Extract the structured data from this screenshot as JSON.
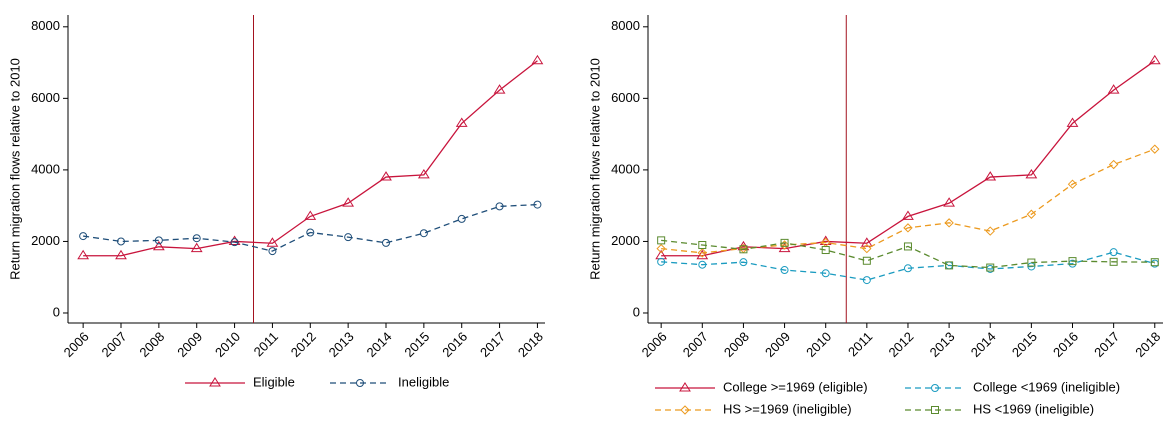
{
  "chart_data": [
    {
      "type": "line",
      "y_label": "Return migration flows relative to 2010",
      "x": [
        2006,
        2007,
        2008,
        2009,
        2010,
        2011,
        2012,
        2013,
        2014,
        2015,
        2016,
        2017,
        2018
      ],
      "xlim": [
        2005.6,
        2018.2
      ],
      "xticks": [
        2006,
        2007,
        2008,
        2009,
        2010,
        2011,
        2012,
        2013,
        2014,
        2015,
        2016,
        2017,
        2018
      ],
      "ylim": [
        -280,
        8330
      ],
      "yticks": [
        0,
        2000,
        4000,
        6000,
        8000
      ],
      "vline": 2010.5,
      "vline_color": "#a3121f",
      "legend_columns": 2,
      "series": [
        {
          "name": "Eligible",
          "color": "#c8143c",
          "marker": "triangle",
          "dash": false,
          "values": [
            1600,
            1600,
            1850,
            1800,
            2000,
            1950,
            2700,
            3070,
            3800,
            3860,
            5300,
            6230,
            7050
          ]
        },
        {
          "name": "Ineligible",
          "color": "#1f4e79",
          "marker": "circle",
          "dash": true,
          "values": [
            2150,
            2000,
            2030,
            2090,
            1980,
            1730,
            2250,
            2120,
            1960,
            2230,
            2630,
            2980,
            3030
          ]
        }
      ]
    },
    {
      "type": "line",
      "y_label": "Return migration flows relative to 2010",
      "x": [
        2006,
        2007,
        2008,
        2009,
        2010,
        2011,
        2012,
        2013,
        2014,
        2015,
        2016,
        2017,
        2018
      ],
      "xlim": [
        2005.68,
        2018.2
      ],
      "xticks": [
        2006,
        2007,
        2008,
        2009,
        2010,
        2011,
        2012,
        2013,
        2014,
        2015,
        2016,
        2017,
        2018
      ],
      "ylim": [
        -280,
        8330
      ],
      "yticks": [
        0,
        2000,
        4000,
        6000,
        8000
      ],
      "vline": 2010.5,
      "vline_color": "#a3121f",
      "legend_columns": 2,
      "series": [
        {
          "name": "College >=1969 (eligible)",
          "color": "#c8143c",
          "marker": "triangle",
          "dash": false,
          "values": [
            1600,
            1600,
            1850,
            1800,
            2000,
            1950,
            2700,
            3070,
            3800,
            3860,
            5300,
            6230,
            7050
          ]
        },
        {
          "name": "College <1969 (ineligible)",
          "color": "#1a9bc0",
          "marker": "circle",
          "dash": true,
          "values": [
            1430,
            1350,
            1420,
            1200,
            1110,
            920,
            1250,
            1330,
            1230,
            1300,
            1380,
            1700,
            1380
          ]
        },
        {
          "name": "HS >=1969 (ineligible)",
          "color": "#ec9a1f",
          "marker": "diamond",
          "dash": true,
          "values": [
            1800,
            1680,
            1800,
            1900,
            1970,
            1800,
            2380,
            2520,
            2290,
            2760,
            3600,
            4150,
            4580
          ]
        },
        {
          "name": "HS <1969 (ineligible)",
          "color": "#5a8a2e",
          "marker": "square",
          "dash": true,
          "values": [
            2030,
            1900,
            1780,
            1960,
            1760,
            1460,
            1860,
            1330,
            1270,
            1410,
            1450,
            1430,
            1420
          ]
        }
      ]
    }
  ]
}
